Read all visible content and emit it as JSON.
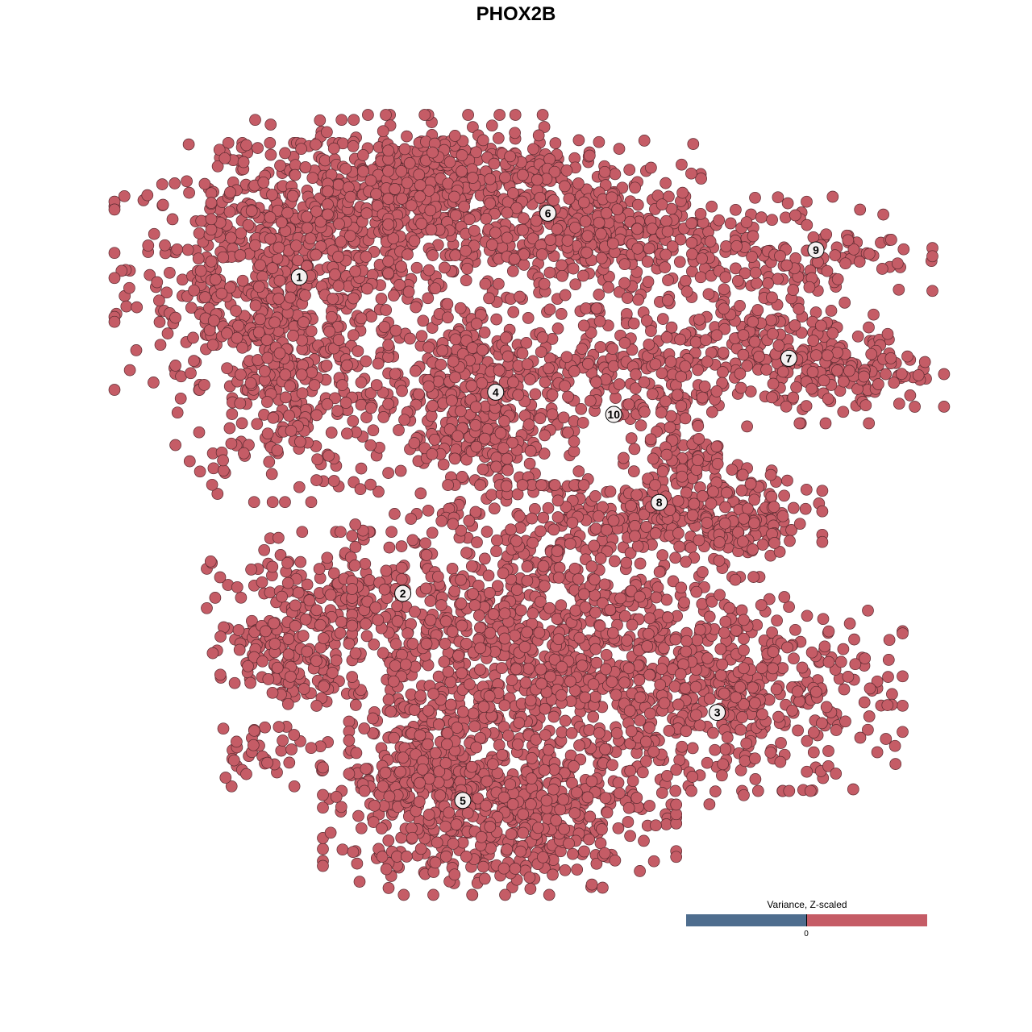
{
  "chart_data": {
    "type": "scatter",
    "title": "PHOX2B",
    "xlabel": "",
    "ylabel": "",
    "grid": false,
    "axes_visible": false,
    "xlim": [
      -45,
      45
    ],
    "ylim": [
      -45,
      45
    ],
    "point_color": "#c55c66",
    "point_edge_color": "#5a2a30",
    "legend": {
      "title": "Variance, Z-scaled",
      "type": "colorbar",
      "placement": "bottom-right",
      "low_color": "#4e6d8e",
      "high_color": "#c55c66",
      "tick_labels": [
        "0"
      ]
    },
    "cluster_labels": [
      {
        "label": "1",
        "x": -22.4,
        "y": 24.7
      },
      {
        "label": "2",
        "x": -11.7,
        "y": -8.0
      },
      {
        "label": "3",
        "x": 20.8,
        "y": -20.3
      },
      {
        "label": "4",
        "x": -2.1,
        "y": 12.8
      },
      {
        "label": "5",
        "x": -5.5,
        "y": -29.4
      },
      {
        "label": "6",
        "x": 3.3,
        "y": 31.3
      },
      {
        "label": "7",
        "x": 28.2,
        "y": 16.3
      },
      {
        "label": "8",
        "x": 14.8,
        "y": 1.4
      },
      {
        "label": "9",
        "x": 31.0,
        "y": 27.5
      },
      {
        "label": "10",
        "x": 10.1,
        "y": 10.5
      }
    ],
    "cluster_regions": [
      {
        "cluster": "1",
        "x": -25,
        "y": 25.8,
        "sx": 7.5,
        "sy": 5.8,
        "n": 500
      },
      {
        "cluster": "1",
        "x": -24.2,
        "y": 14.2,
        "sx": 5,
        "sy": 5.8,
        "n": 300
      },
      {
        "cluster": "1",
        "x": -15,
        "y": 31.7,
        "sx": 7.5,
        "sy": 4.2,
        "n": 350
      },
      {
        "cluster": "1",
        "x": -6.7,
        "y": 34.2,
        "sx": 5.8,
        "sy": 3.3,
        "n": 250
      },
      {
        "cluster": "6",
        "x": 3.3,
        "y": 30.8,
        "sx": 7.5,
        "sy": 3.8,
        "n": 350
      },
      {
        "cluster": "6",
        "x": 11.7,
        "y": 28.3,
        "sx": 5,
        "sy": 3.3,
        "n": 150
      },
      {
        "cluster": "4",
        "x": -5,
        "y": 12.1,
        "sx": 5,
        "sy": 5.4,
        "n": 450
      },
      {
        "cluster": "9",
        "x": 28.3,
        "y": 27.5,
        "sx": 6.7,
        "sy": 2.5,
        "n": 150
      },
      {
        "cluster": "7",
        "x": 24.2,
        "y": 18.3,
        "sx": 5.8,
        "sy": 2.9,
        "n": 200
      },
      {
        "cluster": "7",
        "x": 35,
        "y": 14.2,
        "sx": 4.2,
        "sy": 2.1,
        "n": 120
      },
      {
        "cluster": "10",
        "x": 10,
        "y": 14.2,
        "sx": 4.2,
        "sy": 3.3,
        "n": 120
      },
      {
        "cluster": "8",
        "x": 17.5,
        "y": 6.7,
        "sx": 2.9,
        "sy": 4.2,
        "n": 150
      },
      {
        "cluster": "8",
        "x": 23.3,
        "y": -0.8,
        "sx": 3.8,
        "sy": 2.5,
        "n": 150
      },
      {
        "cluster": "8",
        "x": 10,
        "y": 0,
        "sx": 5,
        "sy": 2.1,
        "n": 120
      },
      {
        "cluster": "2",
        "x": -19.2,
        "y": -10,
        "sx": 5.8,
        "sy": 3.8,
        "n": 250
      },
      {
        "cluster": "2",
        "x": -23.3,
        "y": -15,
        "sx": 3.3,
        "sy": 2.1,
        "n": 100
      },
      {
        "cluster": "2",
        "x": -25,
        "y": -24.2,
        "sx": 3.3,
        "sy": 1.7,
        "n": 40
      },
      {
        "cluster": "3",
        "x": 21.7,
        "y": -18.3,
        "sx": 8.3,
        "sy": 4.6,
        "n": 450
      },
      {
        "cluster": "3",
        "x": 3.3,
        "y": -13.3,
        "sx": 9.2,
        "sy": 7.5,
        "n": 900
      },
      {
        "cluster": "5",
        "x": -1.7,
        "y": -30.8,
        "sx": 8.3,
        "sy": 3.8,
        "n": 550
      },
      {
        "cluster": "5",
        "x": -10,
        "y": -24.2,
        "sx": 3.3,
        "sy": 5,
        "n": 200
      }
    ]
  }
}
